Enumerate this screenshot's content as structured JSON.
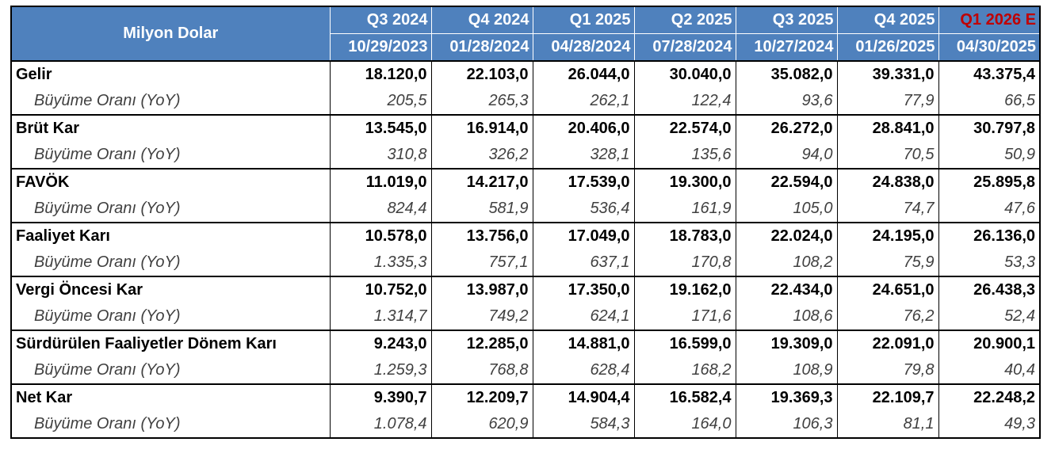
{
  "header": {
    "corner_label": "Milyon Dolar",
    "periods": [
      {
        "quarter": "Q3 2024",
        "date": "10/29/2023"
      },
      {
        "quarter": "Q4 2024",
        "date": "01/28/2024"
      },
      {
        "quarter": "Q1 2025",
        "date": "04/28/2024"
      },
      {
        "quarter": "Q2 2025",
        "date": "07/28/2024"
      },
      {
        "quarter": "Q3 2025",
        "date": "10/27/2024"
      },
      {
        "quarter": "Q4 2025",
        "date": "01/26/2025"
      },
      {
        "quarter": "Q1 2026 E",
        "date": "04/30/2025"
      }
    ],
    "estimate_color": "#c00000",
    "header_bg": "#4f81bd"
  },
  "growth_label": "Büyüme Oranı (YoY)",
  "rows": [
    {
      "label": "Gelir",
      "values": [
        "18.120,0",
        "22.103,0",
        "26.044,0",
        "30.040,0",
        "35.082,0",
        "39.331,0",
        "43.375,4"
      ],
      "growth": [
        "205,5",
        "265,3",
        "262,1",
        "122,4",
        "93,6",
        "77,9",
        "66,5"
      ]
    },
    {
      "label": "Brüt Kar",
      "values": [
        "13.545,0",
        "16.914,0",
        "20.406,0",
        "22.574,0",
        "26.272,0",
        "28.841,0",
        "30.797,8"
      ],
      "growth": [
        "310,8",
        "326,2",
        "328,1",
        "135,6",
        "94,0",
        "70,5",
        "50,9"
      ]
    },
    {
      "label": "FAVÖK",
      "values": [
        "11.019,0",
        "14.217,0",
        "17.539,0",
        "19.300,0",
        "22.594,0",
        "24.838,0",
        "25.895,8"
      ],
      "growth": [
        "824,4",
        "581,9",
        "536,4",
        "161,9",
        "105,0",
        "74,7",
        "47,6"
      ]
    },
    {
      "label": "Faaliyet Karı",
      "values": [
        "10.578,0",
        "13.756,0",
        "17.049,0",
        "18.783,0",
        "22.024,0",
        "24.195,0",
        "26.136,0"
      ],
      "growth": [
        "1.335,3",
        "757,1",
        "637,1",
        "170,8",
        "108,2",
        "75,9",
        "53,3"
      ]
    },
    {
      "label": "Vergi Öncesi Kar",
      "values": [
        "10.752,0",
        "13.987,0",
        "17.350,0",
        "19.162,0",
        "22.434,0",
        "24.651,0",
        "26.438,3"
      ],
      "growth": [
        "1.314,7",
        "749,2",
        "624,1",
        "171,6",
        "108,6",
        "76,2",
        "52,4"
      ]
    },
    {
      "label": "Sürdürülen Faaliyetler Dönem Karı",
      "values": [
        "9.243,0",
        "12.285,0",
        "14.881,0",
        "16.599,0",
        "19.309,0",
        "22.091,0",
        "20.900,1"
      ],
      "growth": [
        "1.259,3",
        "768,8",
        "628,4",
        "168,2",
        "108,9",
        "79,8",
        "40,4"
      ]
    },
    {
      "label": "Net Kar",
      "values": [
        "9.390,7",
        "12.209,7",
        "14.904,4",
        "16.582,4",
        "19.369,3",
        "22.109,7",
        "22.248,2"
      ],
      "growth": [
        "1.078,4",
        "620,9",
        "584,3",
        "164,0",
        "106,3",
        "81,1",
        "49,3"
      ]
    }
  ]
}
